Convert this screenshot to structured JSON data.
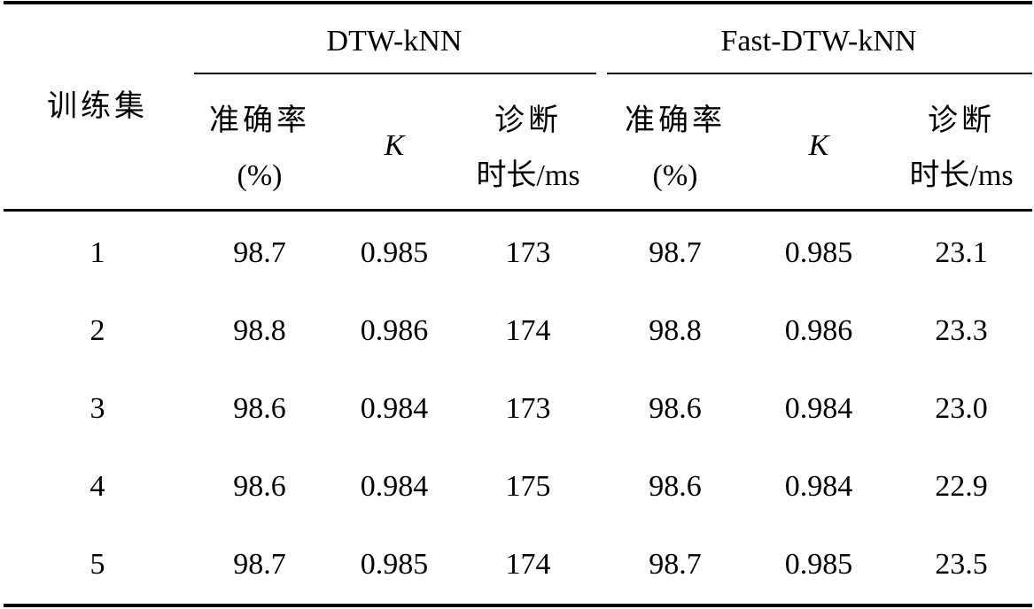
{
  "table": {
    "header": {
      "row_label": "训练集",
      "groups": [
        {
          "name": "DTW-kNN",
          "columns": [
            {
              "line1": "准确率",
              "line2": "(%)"
            },
            {
              "line1": "K",
              "line2": ""
            },
            {
              "line1": "诊断",
              "line2": "时长/ms"
            }
          ]
        },
        {
          "name": "Fast-DTW-kNN",
          "columns": [
            {
              "line1": "准确率",
              "line2": "(%)"
            },
            {
              "line1": "K",
              "line2": ""
            },
            {
              "line1": "诊断",
              "line2": "时长/ms"
            }
          ]
        }
      ]
    },
    "rows": [
      [
        "1",
        "98.7",
        "0.985",
        "173",
        "98.7",
        "0.985",
        "23.1"
      ],
      [
        "2",
        "98.8",
        "0.986",
        "174",
        "98.8",
        "0.986",
        "23.3"
      ],
      [
        "3",
        "98.6",
        "0.984",
        "173",
        "98.6",
        "0.984",
        "23.0"
      ],
      [
        "4",
        "98.6",
        "0.984",
        "175",
        "98.6",
        "0.984",
        "22.9"
      ],
      [
        "5",
        "98.7",
        "0.985",
        "174",
        "98.7",
        "0.985",
        "23.5"
      ]
    ]
  }
}
